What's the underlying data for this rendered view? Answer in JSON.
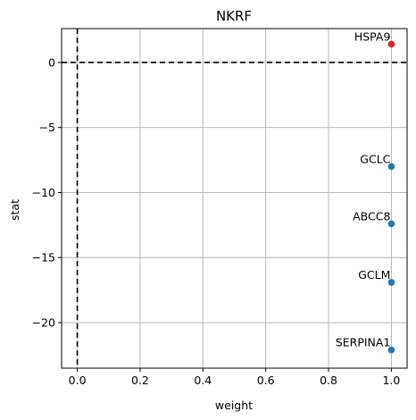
{
  "chart_data": {
    "type": "scatter",
    "title": "NKRF",
    "xlabel": "weight",
    "ylabel": "stat",
    "xlim": [
      -0.05,
      1.05
    ],
    "ylim": [
      -23.5,
      2.6
    ],
    "xticks": [
      0.0,
      0.2,
      0.4,
      0.6,
      0.8,
      1.0
    ],
    "xtick_labels": [
      "0.0",
      "0.2",
      "0.4",
      "0.6",
      "0.8",
      "1.0"
    ],
    "yticks": [
      0,
      -5,
      -10,
      -15,
      -20
    ],
    "ytick_labels": [
      "0",
      "−5",
      "−10",
      "−15",
      "−20"
    ],
    "grid": true,
    "reference_lines": {
      "x": 0,
      "y": 0
    },
    "colors": {
      "positive": "#d62728",
      "negative": "#1f77b4"
    },
    "points": [
      {
        "label": "HSPA9",
        "x": 1.0,
        "y": 1.4,
        "color": "#d62728"
      },
      {
        "label": "GCLC",
        "x": 1.0,
        "y": -8.0,
        "color": "#1f77b4"
      },
      {
        "label": "ABCC8",
        "x": 1.0,
        "y": -12.4,
        "color": "#1f77b4"
      },
      {
        "label": "GCLM",
        "x": 1.0,
        "y": -16.9,
        "color": "#1f77b4"
      },
      {
        "label": "SERPINA1",
        "x": 1.0,
        "y": -22.1,
        "color": "#1f77b4"
      }
    ]
  }
}
